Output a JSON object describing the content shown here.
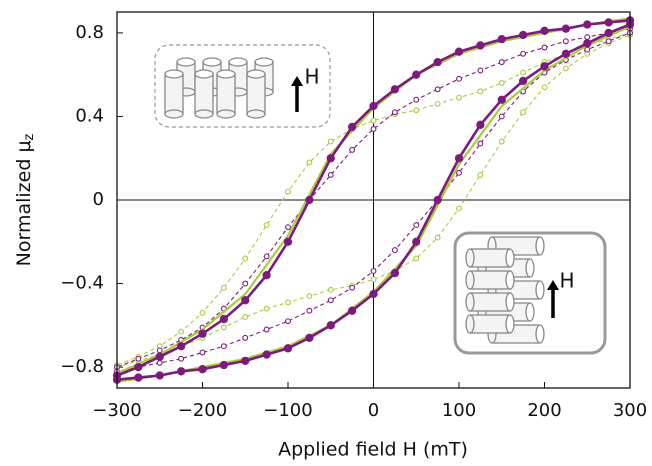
{
  "chart_data": {
    "type": "line",
    "x_label": "Applied field H (mT)",
    "y_label": {
      "text": "Normalized μ",
      "subscript": "z"
    },
    "xlim": [
      -300,
      300
    ],
    "ylim": [
      -0.9,
      0.9
    ],
    "xticks": [
      {
        "value": -300,
        "label": "−300"
      },
      {
        "value": -200,
        "label": "−200"
      },
      {
        "value": -100,
        "label": "−100"
      },
      0,
      100,
      200,
      300
    ],
    "yticks": [
      {
        "value": -0.8,
        "label": "−0.8"
      },
      {
        "value": -0.4,
        "label": "−0.4"
      },
      0,
      0.4,
      0.8
    ],
    "insets": [
      {
        "label": "H"
      },
      {
        "label": "H"
      }
    ],
    "series": [
      {
        "color": "#a8cc3c",
        "dashed": true,
        "marker": "open",
        "x": [
          300,
          275,
          250,
          225,
          200,
          175,
          150,
          125,
          100,
          75,
          50,
          25,
          0,
          -25,
          -50,
          -75,
          -100,
          -125,
          -150,
          -175,
          -200,
          -225,
          -250,
          -275,
          -300,
          -300,
          -275,
          -250,
          -225,
          -200,
          -175,
          -150,
          -125,
          -100,
          -75,
          -50,
          -25,
          0,
          25,
          50,
          75,
          100,
          125,
          150,
          175,
          200,
          225,
          250,
          275,
          300
        ],
        "values": [
          0.8,
          0.77,
          0.74,
          0.7,
          0.66,
          0.61,
          0.56,
          0.52,
          0.49,
          0.46,
          0.43,
          0.41,
          0.38,
          0.34,
          0.28,
          0.18,
          0.04,
          -0.12,
          -0.28,
          -0.42,
          -0.54,
          -0.63,
          -0.7,
          -0.75,
          -0.79,
          -0.8,
          -0.77,
          -0.74,
          -0.7,
          -0.66,
          -0.61,
          -0.56,
          -0.52,
          -0.49,
          -0.46,
          -0.43,
          -0.41,
          -0.38,
          -0.34,
          -0.28,
          -0.18,
          -0.04,
          0.12,
          0.28,
          0.42,
          0.54,
          0.63,
          0.7,
          0.75,
          0.79
        ]
      },
      {
        "color": "#7d1a7d",
        "dashed": true,
        "marker": "open",
        "x": [
          300,
          275,
          250,
          225,
          200,
          175,
          150,
          125,
          100,
          75,
          50,
          25,
          0,
          -25,
          -50,
          -75,
          -100,
          -125,
          -150,
          -175,
          -200,
          -225,
          -250,
          -275,
          -300,
          -300,
          -275,
          -250,
          -225,
          -200,
          -175,
          -150,
          -125,
          -100,
          -75,
          -50,
          -25,
          0,
          25,
          50,
          75,
          100,
          125,
          150,
          175,
          200,
          225,
          250,
          275,
          300
        ],
        "values": [
          0.82,
          0.8,
          0.78,
          0.76,
          0.73,
          0.7,
          0.66,
          0.62,
          0.58,
          0.53,
          0.48,
          0.42,
          0.34,
          0.24,
          0.12,
          0,
          -0.13,
          -0.27,
          -0.4,
          -0.52,
          -0.61,
          -0.67,
          -0.72,
          -0.76,
          -0.8,
          -0.82,
          -0.8,
          -0.78,
          -0.76,
          -0.73,
          -0.7,
          -0.66,
          -0.62,
          -0.58,
          -0.53,
          -0.48,
          -0.42,
          -0.34,
          -0.24,
          -0.12,
          0,
          0.13,
          0.27,
          0.4,
          0.52,
          0.61,
          0.67,
          0.72,
          0.76,
          0.8
        ]
      },
      {
        "color": "#a8cc3c",
        "dashed": false,
        "marker": "none",
        "x": [
          300,
          250,
          200,
          150,
          100,
          50,
          0,
          -50,
          -100,
          -150,
          -200,
          -250,
          -300,
          -300,
          -250,
          -200,
          -150,
          -100,
          -50,
          0,
          50,
          100,
          150,
          200,
          250,
          300
        ],
        "values": [
          0.87,
          0.84,
          0.8,
          0.76,
          0.7,
          0.6,
          0.44,
          0.22,
          -0.17,
          -0.45,
          -0.62,
          -0.74,
          -0.83,
          -0.87,
          -0.84,
          -0.8,
          -0.76,
          -0.7,
          -0.6,
          -0.44,
          -0.22,
          0.17,
          0.45,
          0.62,
          0.74,
          0.83
        ]
      },
      {
        "color": "#7d1a7d",
        "dashed": false,
        "marker": "filled",
        "x": [
          300,
          275,
          250,
          225,
          200,
          175,
          150,
          125,
          100,
          75,
          50,
          25,
          0,
          -25,
          -50,
          -75,
          -100,
          -125,
          -150,
          -175,
          -200,
          -225,
          -250,
          -275,
          -300,
          -300,
          -275,
          -250,
          -225,
          -200,
          -175,
          -150,
          -125,
          -100,
          -75,
          -50,
          -25,
          0,
          25,
          50,
          75,
          100,
          125,
          150,
          175,
          200,
          225,
          250,
          275,
          300
        ],
        "values": [
          0.86,
          0.85,
          0.84,
          0.82,
          0.81,
          0.79,
          0.77,
          0.74,
          0.71,
          0.66,
          0.6,
          0.53,
          0.45,
          0.35,
          0.2,
          0,
          -0.2,
          -0.36,
          -0.48,
          -0.57,
          -0.64,
          -0.7,
          -0.75,
          -0.8,
          -0.84,
          -0.86,
          -0.85,
          -0.84,
          -0.82,
          -0.81,
          -0.79,
          -0.77,
          -0.74,
          -0.71,
          -0.66,
          -0.6,
          -0.53,
          -0.45,
          -0.35,
          -0.2,
          0,
          0.2,
          0.36,
          0.48,
          0.57,
          0.64,
          0.7,
          0.75,
          0.8,
          0.84
        ]
      }
    ]
  }
}
